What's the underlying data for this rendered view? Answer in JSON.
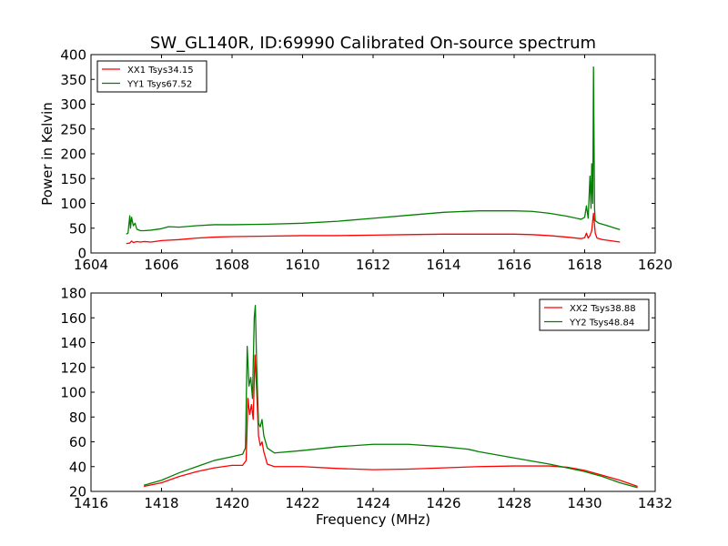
{
  "figure": {
    "title": "SW_GL140R, ID:69990 Calibrated On-source spectrum"
  },
  "chart_data": [
    {
      "type": "line",
      "title": "SW_GL140R, ID:69990 Calibrated On-source spectrum",
      "xlabel": "",
      "ylabel": "Power in Kelvin",
      "xlim": [
        1604,
        1620
      ],
      "ylim": [
        0,
        400
      ],
      "xticks": [
        1604,
        1606,
        1608,
        1610,
        1612,
        1614,
        1616,
        1618,
        1620
      ],
      "yticks": [
        0,
        50,
        100,
        150,
        200,
        250,
        300,
        350,
        400
      ],
      "grid": false,
      "legend_position": "upper left",
      "series": [
        {
          "name": "XX1 Tsys34.15",
          "color": "#ff0000",
          "points": [
            [
              1605.0,
              19
            ],
            [
              1605.1,
              20
            ],
            [
              1605.15,
              24
            ],
            [
              1605.2,
              21
            ],
            [
              1605.3,
              23
            ],
            [
              1605.4,
              22
            ],
            [
              1605.5,
              23
            ],
            [
              1605.7,
              22
            ],
            [
              1606.0,
              25
            ],
            [
              1606.5,
              27
            ],
            [
              1607.0,
              30
            ],
            [
              1607.5,
              32
            ],
            [
              1608.0,
              33
            ],
            [
              1609.0,
              34
            ],
            [
              1610.0,
              35
            ],
            [
              1611.0,
              35
            ],
            [
              1612.0,
              36
            ],
            [
              1613.0,
              37
            ],
            [
              1614.0,
              38
            ],
            [
              1615.0,
              38
            ],
            [
              1616.0,
              38
            ],
            [
              1616.5,
              37
            ],
            [
              1617.0,
              35
            ],
            [
              1617.5,
              32
            ],
            [
              1617.9,
              29
            ],
            [
              1618.0,
              31
            ],
            [
              1618.05,
              40
            ],
            [
              1618.1,
              30
            ],
            [
              1618.15,
              35
            ],
            [
              1618.2,
              45
            ],
            [
              1618.25,
              80
            ],
            [
              1618.3,
              40
            ],
            [
              1618.35,
              30
            ],
            [
              1618.5,
              27
            ],
            [
              1619.0,
              22
            ]
          ]
        },
        {
          "name": "YY1 Tsys67.52",
          "color": "#008000",
          "points": [
            [
              1605.0,
              38
            ],
            [
              1605.05,
              40
            ],
            [
              1605.1,
              75
            ],
            [
              1605.12,
              50
            ],
            [
              1605.15,
              72
            ],
            [
              1605.2,
              55
            ],
            [
              1605.25,
              60
            ],
            [
              1605.3,
              48
            ],
            [
              1605.4,
              45
            ],
            [
              1605.5,
              45
            ],
            [
              1605.7,
              46
            ],
            [
              1606.0,
              49
            ],
            [
              1606.2,
              53
            ],
            [
              1606.5,
              52
            ],
            [
              1607.0,
              55
            ],
            [
              1607.5,
              57
            ],
            [
              1608.0,
              57
            ],
            [
              1609.0,
              58
            ],
            [
              1610.0,
              60
            ],
            [
              1611.0,
              64
            ],
            [
              1612.0,
              70
            ],
            [
              1613.0,
              76
            ],
            [
              1614.0,
              82
            ],
            [
              1615.0,
              85
            ],
            [
              1616.0,
              85
            ],
            [
              1616.5,
              84
            ],
            [
              1617.0,
              80
            ],
            [
              1617.5,
              74
            ],
            [
              1617.9,
              68
            ],
            [
              1618.0,
              72
            ],
            [
              1618.05,
              95
            ],
            [
              1618.1,
              70
            ],
            [
              1618.15,
              155
            ],
            [
              1618.18,
              90
            ],
            [
              1618.2,
              180
            ],
            [
              1618.23,
              100
            ],
            [
              1618.25,
              375
            ],
            [
              1618.28,
              90
            ],
            [
              1618.3,
              65
            ],
            [
              1618.4,
              60
            ],
            [
              1618.6,
              56
            ],
            [
              1619.0,
              47
            ]
          ]
        }
      ]
    },
    {
      "type": "line",
      "title": "",
      "xlabel": "Frequency (MHz)",
      "ylabel": "",
      "xlim": [
        1416,
        1432
      ],
      "ylim": [
        20,
        180
      ],
      "xticks": [
        1416,
        1418,
        1420,
        1422,
        1424,
        1426,
        1428,
        1430,
        1432
      ],
      "yticks": [
        20,
        40,
        60,
        80,
        100,
        120,
        140,
        160,
        180
      ],
      "grid": false,
      "legend_position": "upper right",
      "series": [
        {
          "name": "XX2 Tsys38.88",
          "color": "#ff0000",
          "points": [
            [
              1417.5,
              24
            ],
            [
              1418.0,
              27
            ],
            [
              1418.5,
              32
            ],
            [
              1419.0,
              36
            ],
            [
              1419.5,
              39
            ],
            [
              1420.0,
              41
            ],
            [
              1420.3,
              41
            ],
            [
              1420.4,
              45
            ],
            [
              1420.45,
              95
            ],
            [
              1420.5,
              82
            ],
            [
              1420.55,
              90
            ],
            [
              1420.6,
              78
            ],
            [
              1420.65,
              130
            ],
            [
              1420.7,
              100
            ],
            [
              1420.75,
              65
            ],
            [
              1420.8,
              57
            ],
            [
              1420.85,
              60
            ],
            [
              1420.9,
              52
            ],
            [
              1421.0,
              42
            ],
            [
              1421.2,
              40
            ],
            [
              1422.0,
              40
            ],
            [
              1423.0,
              38.5
            ],
            [
              1424.0,
              37.5
            ],
            [
              1425.0,
              38
            ],
            [
              1426.0,
              39
            ],
            [
              1427.0,
              40
            ],
            [
              1428.0,
              40.5
            ],
            [
              1429.0,
              40.5
            ],
            [
              1429.5,
              39.5
            ],
            [
              1430.0,
              37
            ],
            [
              1430.5,
              33
            ],
            [
              1431.0,
              29
            ],
            [
              1431.5,
              24
            ]
          ]
        },
        {
          "name": "YY2 Tsys48.84",
          "color": "#008000",
          "points": [
            [
              1417.5,
              25
            ],
            [
              1418.0,
              29
            ],
            [
              1418.5,
              35
            ],
            [
              1419.0,
              40
            ],
            [
              1419.5,
              45
            ],
            [
              1420.0,
              48
            ],
            [
              1420.3,
              50
            ],
            [
              1420.38,
              55
            ],
            [
              1420.43,
              137
            ],
            [
              1420.48,
              105
            ],
            [
              1420.53,
              112
            ],
            [
              1420.58,
              95
            ],
            [
              1420.63,
              160
            ],
            [
              1420.66,
              170
            ],
            [
              1420.7,
              120
            ],
            [
              1420.75,
              75
            ],
            [
              1420.8,
              72
            ],
            [
              1420.85,
              78
            ],
            [
              1420.9,
              65
            ],
            [
              1421.0,
              55
            ],
            [
              1421.2,
              51
            ],
            [
              1422.0,
              53
            ],
            [
              1423.0,
              56
            ],
            [
              1424.0,
              58
            ],
            [
              1425.0,
              58
            ],
            [
              1426.0,
              56
            ],
            [
              1426.7,
              54
            ],
            [
              1427.0,
              52
            ],
            [
              1428.0,
              47
            ],
            [
              1429.0,
              42
            ],
            [
              1429.5,
              39
            ],
            [
              1430.0,
              36
            ],
            [
              1430.5,
              32
            ],
            [
              1431.0,
              27
            ],
            [
              1431.5,
              23
            ]
          ]
        }
      ]
    }
  ]
}
